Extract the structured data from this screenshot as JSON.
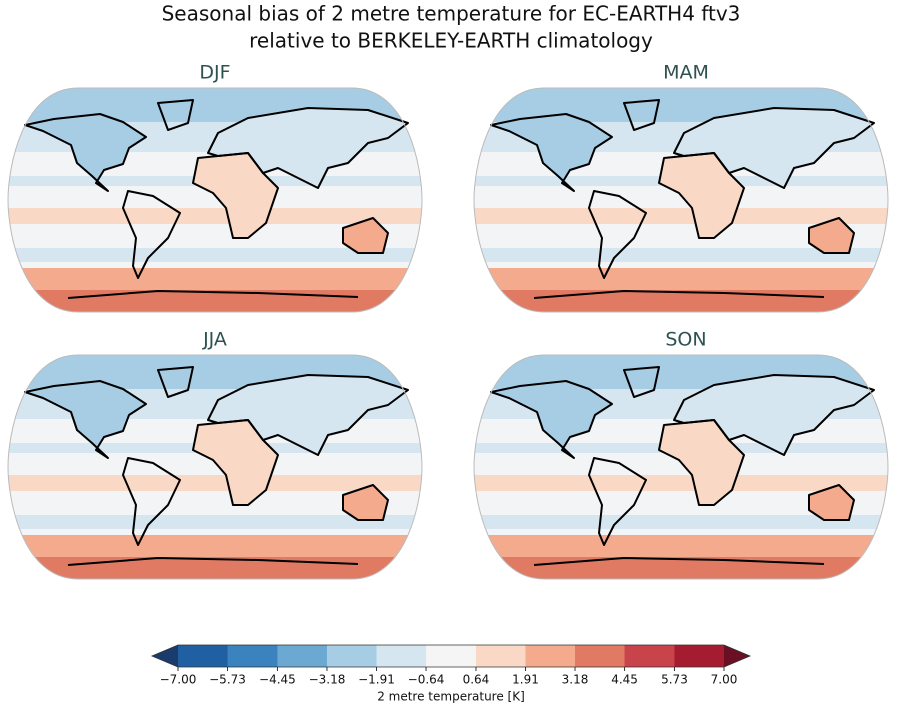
{
  "title": [
    "Seasonal bias of 2 metre temperature for EC-EARTH4 ftv3",
    "relative to BERKELEY-EARTH climatology"
  ],
  "panels": [
    {
      "title": "DJF"
    },
    {
      "title": "MAM"
    },
    {
      "title": "JJA"
    },
    {
      "title": "SON"
    }
  ],
  "colorbar": {
    "label": "2 metre temperature [K]",
    "extend": "both",
    "ticks": [
      {
        "value": -7,
        "label": "−7.00"
      },
      {
        "value": -5.73,
        "label": "−5.73"
      },
      {
        "value": -4.45,
        "label": "−4.45"
      },
      {
        "value": -3.18,
        "label": "−3.18"
      },
      {
        "value": -1.91,
        "label": "−1.91"
      },
      {
        "value": -0.64,
        "label": "−0.64"
      },
      0.64,
      1.91,
      3.18,
      4.45,
      5.73,
      {
        "value": 7,
        "label": "7.00"
      }
    ],
    "under_color": "#1a3c6c",
    "colors": [
      "#1f5fa2",
      "#3a83bf",
      "#6ba9d3",
      "#a7cde4",
      "#d6e6f1",
      "#f5f5f5",
      "#f9d8c6",
      "#f4ab8d",
      "#e17a63",
      "#c8434a",
      "#a51c30"
    ],
    "over_color": "#6a0f24"
  }
}
